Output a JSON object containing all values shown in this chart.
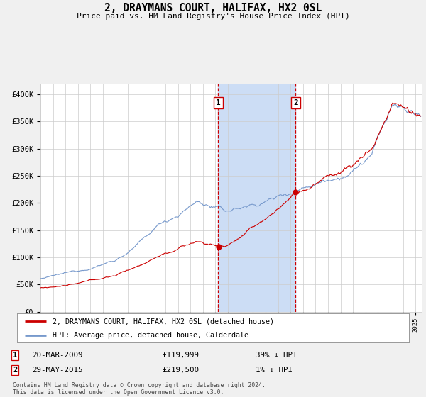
{
  "title": "2, DRAYMANS COURT, HALIFAX, HX2 0SL",
  "subtitle": "Price paid vs. HM Land Registry's House Price Index (HPI)",
  "sale1": {
    "date": 2009.22,
    "price": 119999,
    "label": "1",
    "date_str": "20-MAR-2009",
    "hpi_diff": "39% ↓ HPI"
  },
  "sale2": {
    "date": 2015.41,
    "price": 219500,
    "label": "2",
    "date_str": "29-MAY-2015",
    "hpi_diff": "1% ↓ HPI"
  },
  "ylim": [
    0,
    420000
  ],
  "xlim_start": 1995.0,
  "xlim_end": 2025.5,
  "yticks": [
    0,
    50000,
    100000,
    150000,
    200000,
    250000,
    300000,
    350000,
    400000
  ],
  "ytick_labels": [
    "£0",
    "£50K",
    "£100K",
    "£150K",
    "£200K",
    "£250K",
    "£300K",
    "£350K",
    "£400K"
  ],
  "red_line_color": "#cc0000",
  "blue_line_color": "#7799cc",
  "bg_color": "#f0f0f0",
  "plot_bg_color": "#ffffff",
  "highlight_color": "#ccddf5",
  "grid_color": "#cccccc",
  "footnote": "Contains HM Land Registry data © Crown copyright and database right 2024.\nThis data is licensed under the Open Government Licence v3.0.",
  "legend1": "2, DRAYMANS COURT, HALIFAX, HX2 0SL (detached house)",
  "legend2": "HPI: Average price, detached house, Calderdale"
}
